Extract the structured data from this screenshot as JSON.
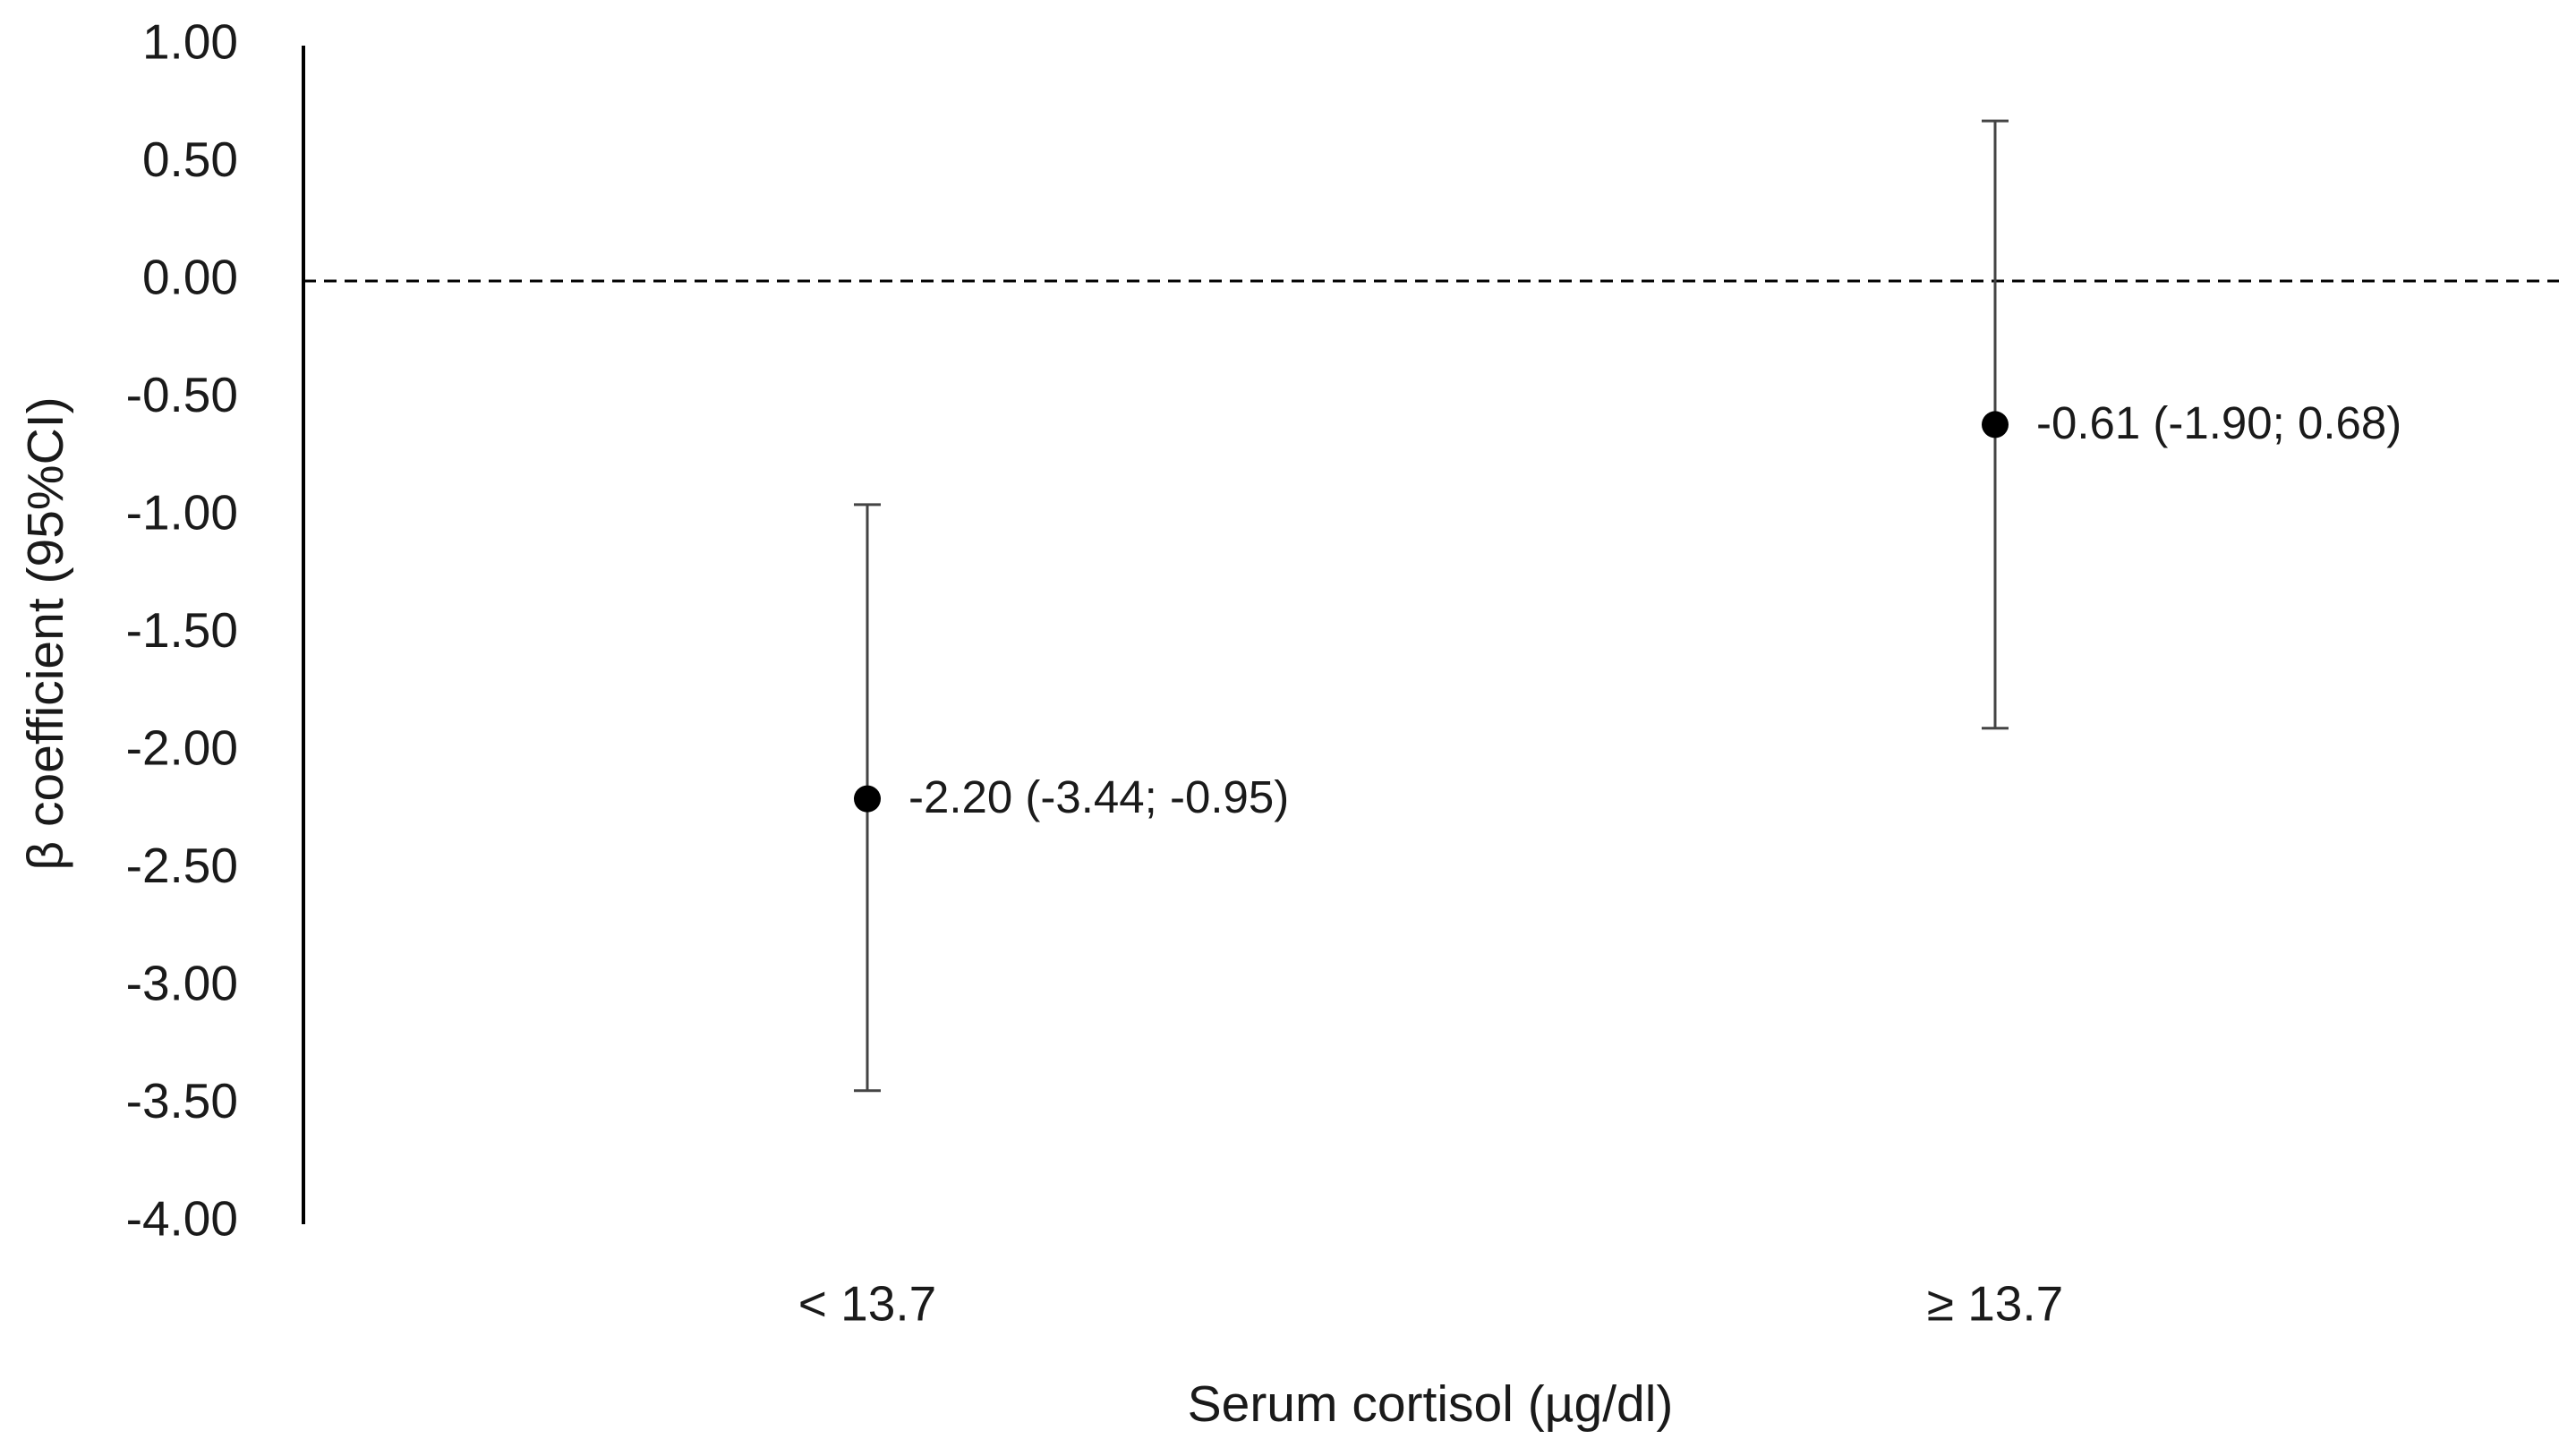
{
  "chart_data": {
    "type": "errorbar",
    "y_label": "β coefficient (95%CI)",
    "x_label": "Serum cortisol (µg/dl)",
    "categories": [
      "< 13.7",
      "≥ 13.7"
    ],
    "values": [
      -2.2,
      -0.61
    ],
    "lower": [
      -3.44,
      -1.9
    ],
    "upper": [
      -0.95,
      0.68
    ],
    "value_labels": [
      "-2.20 (-3.44; -0.95)",
      "-0.61 (-1.90; 0.68)"
    ],
    "color": "#000000",
    "reference_line": 0,
    "ylim": [
      -4,
      1
    ],
    "yticks": [
      {
        "value": 1,
        "label": "1.00"
      },
      {
        "value": 0.5,
        "label": "0.50"
      },
      {
        "value": 0,
        "label": "0.00"
      },
      {
        "value": -0.5,
        "label": "-0.50"
      },
      {
        "value": -1,
        "label": "-1.00"
      },
      {
        "value": -1.5,
        "label": "-1.50"
      },
      {
        "value": -2,
        "label": "-2.00"
      },
      {
        "value": -2.5,
        "label": "-2.50"
      },
      {
        "value": -3,
        "label": "-3.00"
      },
      {
        "value": -3.5,
        "label": "-3.50"
      },
      {
        "value": -4,
        "label": "-4.00"
      }
    ]
  }
}
